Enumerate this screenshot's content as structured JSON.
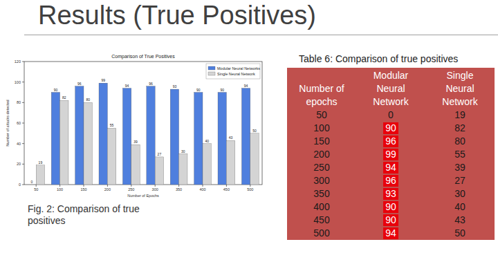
{
  "slide": {
    "title": "Results (True Positives)",
    "figure_caption": "Fig. 2: Comparison of true positives"
  },
  "table": {
    "caption": "Table 6: Comparison of true positives",
    "columns": [
      "Number of epochs",
      "Modular Neural Network",
      "Single Neural Network"
    ],
    "rows": [
      [
        50,
        0,
        19
      ],
      [
        100,
        90,
        82
      ],
      [
        150,
        96,
        80
      ],
      [
        200,
        99,
        55
      ],
      [
        250,
        94,
        39
      ],
      [
        300,
        96,
        27
      ],
      [
        350,
        93,
        30
      ],
      [
        400,
        90,
        40
      ],
      [
        450,
        90,
        43
      ],
      [
        500,
        94,
        50
      ]
    ]
  },
  "chart_data": {
    "type": "bar",
    "title": "Comparison of True Positives",
    "x_label": "Number of Epochs",
    "y_label": "Number of attacks detected",
    "categories": [
      "50",
      "100",
      "150",
      "200",
      "250",
      "300",
      "350",
      "400",
      "450",
      "500"
    ],
    "series": [
      {
        "name": "Modular Neural Networks",
        "color": "#4f7fde",
        "values": [
          0,
          90,
          96,
          99,
          94,
          96,
          93,
          90,
          90,
          94
        ]
      },
      {
        "name": "Single Neural Network",
        "color": "#d4d4d4",
        "values": [
          19,
          82,
          80,
          55,
          39,
          27,
          30,
          40,
          43,
          50
        ]
      }
    ],
    "ylim": [
      0,
      120
    ],
    "yticks": [
      0,
      20,
      40,
      60,
      80,
      100,
      120
    ],
    "grid": false,
    "legend": "top-right",
    "data_labels": true
  }
}
